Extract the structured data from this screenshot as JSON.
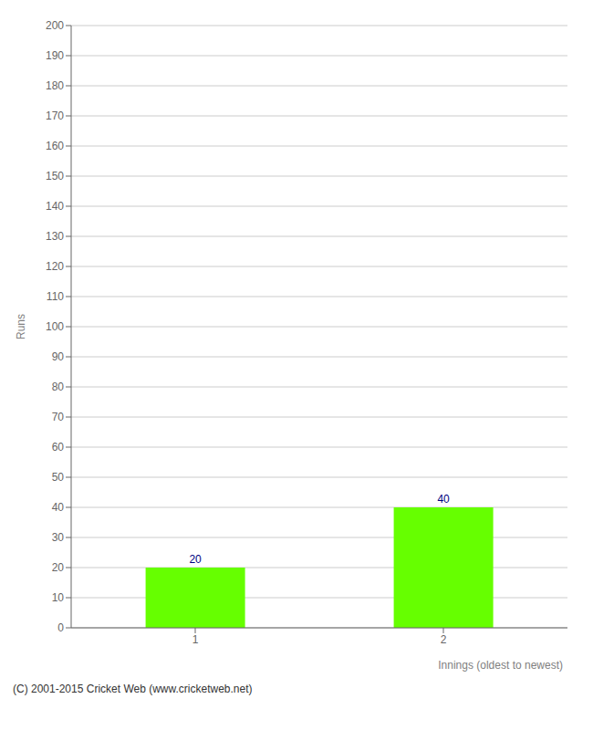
{
  "chart_data": {
    "type": "bar",
    "categories": [
      "1",
      "2"
    ],
    "values": [
      20,
      40
    ],
    "color": "#66ff00",
    "xlabel": "Innings (oldest to newest)",
    "ylabel": "Runs",
    "ylim": [
      0,
      200
    ],
    "yticks": [
      0,
      10,
      20,
      30,
      40,
      50,
      60,
      70,
      80,
      90,
      100,
      110,
      120,
      130,
      140,
      150,
      160,
      170,
      180,
      190,
      200
    ],
    "grid": true,
    "data_labels": true,
    "footer": "(C) 2001-2015 Cricket Web (www.cricketweb.net)"
  }
}
